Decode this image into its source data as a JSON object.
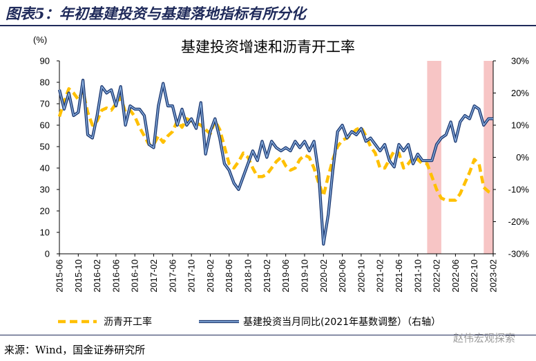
{
  "header": {
    "figure_title": "图表5：年初基建投资与基建落地指标有所分化"
  },
  "footer": {
    "source": "来源：Wind，国金证券研究所",
    "watermark": "赵伟宏观探索"
  },
  "colors": {
    "asphalt": "#FFC000",
    "infra_outer": "#1F3B73",
    "infra_inner": "#8EB4E3",
    "shade": "#F7C5C5",
    "title_navy": "#1F2A5A"
  },
  "chart_data": {
    "type": "line",
    "title": "基建投资增速和沥青开工率",
    "left_axis_unit": "(%)",
    "ylim_left": [
      0,
      90
    ],
    "ylim_right": [
      -30,
      30
    ],
    "yticks_left": [
      "0",
      "10",
      "20",
      "30",
      "40",
      "50",
      "60",
      "70",
      "80",
      "90"
    ],
    "yticks_right": [
      "-30%",
      "-20%",
      "-10%",
      "0%",
      "10%",
      "20%",
      "30%"
    ],
    "x_start": "2015-06",
    "x_end": "2023-02",
    "xticks": [
      "2015-06",
      "2015-10",
      "2016-02",
      "2016-06",
      "2016-10",
      "2017-02",
      "2017-06",
      "2017-10",
      "2018-02",
      "2018-06",
      "2018-10",
      "2019-02",
      "2019-06",
      "2019-10",
      "2020-02",
      "2020-06",
      "2020-10",
      "2021-02",
      "2021-06",
      "2021-10",
      "2022-02",
      "2022-06",
      "2022-10",
      "2023-02"
    ],
    "shaded_periods": [
      {
        "start": "2021-12",
        "end": "2022-03"
      },
      {
        "start": "2022-12",
        "end": "2023-02"
      }
    ],
    "series": [
      {
        "name": "沥青开工率",
        "axis": "left",
        "style": "dashed",
        "points": [
          [
            "2015-06",
            64
          ],
          [
            "2015-07",
            71
          ],
          [
            "2015-08",
            77
          ],
          [
            "2015-09",
            75
          ],
          [
            "2015-10",
            72
          ],
          [
            "2015-11",
            76
          ],
          [
            "2015-12",
            66
          ],
          [
            "2016-01",
            60
          ],
          [
            "2016-02",
            62
          ],
          [
            "2016-03",
            67
          ],
          [
            "2016-04",
            68
          ],
          [
            "2016-05",
            67
          ],
          [
            "2016-06",
            70
          ],
          [
            "2016-07",
            73
          ],
          [
            "2016-08",
            66
          ],
          [
            "2016-09",
            67
          ],
          [
            "2016-10",
            64
          ],
          [
            "2016-11",
            59
          ],
          [
            "2016-12",
            55
          ],
          [
            "2017-01",
            51
          ],
          [
            "2017-02",
            51
          ],
          [
            "2017-03",
            55
          ],
          [
            "2017-04",
            52
          ],
          [
            "2017-05",
            55
          ],
          [
            "2017-06",
            57
          ],
          [
            "2017-07",
            62
          ],
          [
            "2017-08",
            59
          ],
          [
            "2017-09",
            63
          ],
          [
            "2017-10",
            62
          ],
          [
            "2017-11",
            61
          ],
          [
            "2017-12",
            60
          ],
          [
            "2018-01",
            58
          ],
          [
            "2018-02",
            56
          ],
          [
            "2018-03",
            62
          ],
          [
            "2018-04",
            58
          ],
          [
            "2018-05",
            50
          ],
          [
            "2018-06",
            42
          ],
          [
            "2018-07",
            40
          ],
          [
            "2018-08",
            43
          ],
          [
            "2018-09",
            47
          ],
          [
            "2018-10",
            45
          ],
          [
            "2018-11",
            40
          ],
          [
            "2018-12",
            36
          ],
          [
            "2019-01",
            36
          ],
          [
            "2019-02",
            37
          ],
          [
            "2019-03",
            40
          ],
          [
            "2019-04",
            43
          ],
          [
            "2019-05",
            45
          ],
          [
            "2019-06",
            41
          ],
          [
            "2019-07",
            39
          ],
          [
            "2019-08",
            40
          ],
          [
            "2019-09",
            44
          ],
          [
            "2019-10",
            46
          ],
          [
            "2019-11",
            45
          ],
          [
            "2019-12",
            40
          ],
          [
            "2020-01",
            33
          ],
          [
            "2020-02",
            27
          ],
          [
            "2020-03",
            36
          ],
          [
            "2020-04",
            44
          ],
          [
            "2020-05",
            50
          ],
          [
            "2020-06",
            53
          ],
          [
            "2020-07",
            54
          ],
          [
            "2020-08",
            56
          ],
          [
            "2020-09",
            58
          ],
          [
            "2020-10",
            59
          ],
          [
            "2020-11",
            55
          ],
          [
            "2020-12",
            50
          ],
          [
            "2021-01",
            47
          ],
          [
            "2021-02",
            40
          ],
          [
            "2021-03",
            40
          ],
          [
            "2021-04",
            44
          ],
          [
            "2021-05",
            48
          ],
          [
            "2021-06",
            47
          ],
          [
            "2021-07",
            40
          ],
          [
            "2021-08",
            42
          ],
          [
            "2021-09",
            45
          ],
          [
            "2021-10",
            44
          ],
          [
            "2021-11",
            42
          ],
          [
            "2021-12",
            42
          ],
          [
            "2022-01",
            36
          ],
          [
            "2022-02",
            30
          ],
          [
            "2022-03",
            26
          ],
          [
            "2022-04",
            25
          ],
          [
            "2022-05",
            25
          ],
          [
            "2022-06",
            25
          ],
          [
            "2022-07",
            28
          ],
          [
            "2022-08",
            33
          ],
          [
            "2022-09",
            38
          ],
          [
            "2022-10",
            44
          ],
          [
            "2022-11",
            42
          ],
          [
            "2022-12",
            31
          ],
          [
            "2023-01",
            29
          ],
          [
            "2023-02",
            28
          ]
        ]
      },
      {
        "name": "基建投资当月同比(2021年基数调整）（右轴）",
        "axis": "right",
        "style": "double",
        "points": [
          [
            "2015-06",
            21
          ],
          [
            "2015-07",
            15
          ],
          [
            "2015-08",
            20
          ],
          [
            "2015-09",
            13
          ],
          [
            "2015-10",
            14
          ],
          [
            "2015-11",
            24
          ],
          [
            "2015-12",
            7
          ],
          [
            "2016-01",
            6
          ],
          [
            "2016-02",
            13
          ],
          [
            "2016-03",
            22
          ],
          [
            "2016-04",
            20
          ],
          [
            "2016-05",
            21
          ],
          [
            "2016-06",
            16
          ],
          [
            "2016-07",
            22
          ],
          [
            "2016-08",
            10
          ],
          [
            "2016-09",
            16
          ],
          [
            "2016-10",
            15
          ],
          [
            "2016-11",
            15
          ],
          [
            "2016-12",
            13
          ],
          [
            "2017-01",
            4
          ],
          [
            "2017-02",
            3
          ],
          [
            "2017-03",
            16
          ],
          [
            "2017-04",
            23
          ],
          [
            "2017-05",
            16
          ],
          [
            "2017-06",
            16
          ],
          [
            "2017-07",
            10
          ],
          [
            "2017-08",
            15
          ],
          [
            "2017-09",
            10
          ],
          [
            "2017-10",
            12
          ],
          [
            "2017-11",
            9
          ],
          [
            "2017-12",
            17
          ],
          [
            "2018-01",
            1
          ],
          [
            "2018-02",
            8
          ],
          [
            "2018-03",
            12
          ],
          [
            "2018-04",
            6
          ],
          [
            "2018-05",
            -2
          ],
          [
            "2018-06",
            -4
          ],
          [
            "2018-07",
            -8
          ],
          [
            "2018-08",
            -10
          ],
          [
            "2018-09",
            -6
          ],
          [
            "2018-10",
            -2
          ],
          [
            "2018-11",
            2
          ],
          [
            "2018-12",
            -1
          ],
          [
            "2019-01",
            5
          ],
          [
            "2019-02",
            0
          ],
          [
            "2019-03",
            5
          ],
          [
            "2019-04",
            3
          ],
          [
            "2019-05",
            2
          ],
          [
            "2019-06",
            3
          ],
          [
            "2019-07",
            2
          ],
          [
            "2019-08",
            5
          ],
          [
            "2019-09",
            3
          ],
          [
            "2019-10",
            5
          ],
          [
            "2019-11",
            2
          ],
          [
            "2019-12",
            5
          ],
          [
            "2020-01",
            -5
          ],
          [
            "2020-02",
            -27
          ],
          [
            "2020-03",
            -18
          ],
          [
            "2020-04",
            -4
          ],
          [
            "2020-05",
            8
          ],
          [
            "2020-06",
            10
          ],
          [
            "2020-07",
            6
          ],
          [
            "2020-08",
            8
          ],
          [
            "2020-09",
            7
          ],
          [
            "2020-10",
            9
          ],
          [
            "2020-11",
            5
          ],
          [
            "2020-12",
            6
          ],
          [
            "2021-01",
            4
          ],
          [
            "2021-02",
            2
          ],
          [
            "2021-03",
            4
          ],
          [
            "2021-04",
            -1
          ],
          [
            "2021-05",
            -3
          ],
          [
            "2021-06",
            4
          ],
          [
            "2021-07",
            2
          ],
          [
            "2021-08",
            4
          ],
          [
            "2021-09",
            -2
          ],
          [
            "2021-10",
            1
          ],
          [
            "2021-11",
            -1
          ],
          [
            "2021-12",
            -1
          ],
          [
            "2022-01",
            -1
          ],
          [
            "2022-02",
            4
          ],
          [
            "2022-03",
            6
          ],
          [
            "2022-04",
            7
          ],
          [
            "2022-05",
            11
          ],
          [
            "2022-06",
            5
          ],
          [
            "2022-07",
            11
          ],
          [
            "2022-08",
            13
          ],
          [
            "2022-09",
            12
          ],
          [
            "2022-10",
            16
          ],
          [
            "2022-11",
            15
          ],
          [
            "2022-12",
            10
          ],
          [
            "2023-01",
            12
          ],
          [
            "2023-02",
            12
          ]
        ]
      }
    ],
    "legend": {
      "position": "bottom",
      "items": [
        "沥青开工率",
        "基建投资当月同比(2021年基数调整）（右轴）"
      ]
    },
    "grid": false
  }
}
